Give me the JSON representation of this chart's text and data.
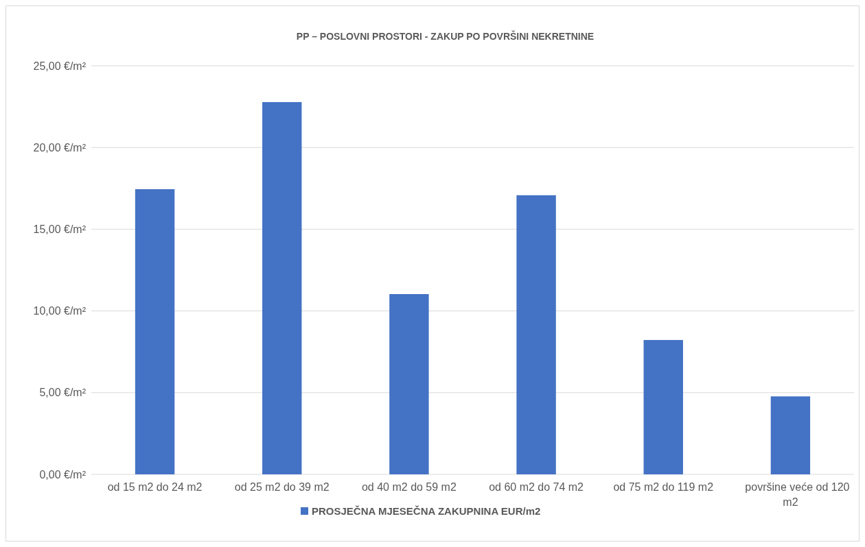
{
  "chart_data": {
    "type": "bar",
    "title": "PP – POSLOVNI PROSTORI - ZAKUP PO POVRŠINI NEKRETNINE",
    "categories": [
      "od 15 m2 do 24 m2",
      "od 25 m2 do 39 m2",
      "od 40 m2 do 59 m2",
      "od 60 m2 do 74 m2",
      "od 75 m2 do 119 m2",
      "površine veće od 120 m2"
    ],
    "series": [
      {
        "name": "PROSJEČNA MJESEČNA ZAKUPNINA EUR/m2",
        "color": "#4472c4",
        "values": [
          17.45,
          22.78,
          11.03,
          17.08,
          8.22,
          4.77
        ]
      }
    ],
    "ylim": [
      0,
      25
    ],
    "yticks": [
      {
        "value": 0,
        "label": "0,00 €/m²"
      },
      {
        "value": 5,
        "label": "5,00 €/m²"
      },
      {
        "value": 10,
        "label": "10,00 €/m²"
      },
      {
        "value": 15,
        "label": "15,00 €/m²"
      },
      {
        "value": 20,
        "label": "20,00 €/m²"
      },
      {
        "value": 25,
        "label": "25,00 €/m²"
      }
    ],
    "grid": "y",
    "legend": "bottom"
  }
}
